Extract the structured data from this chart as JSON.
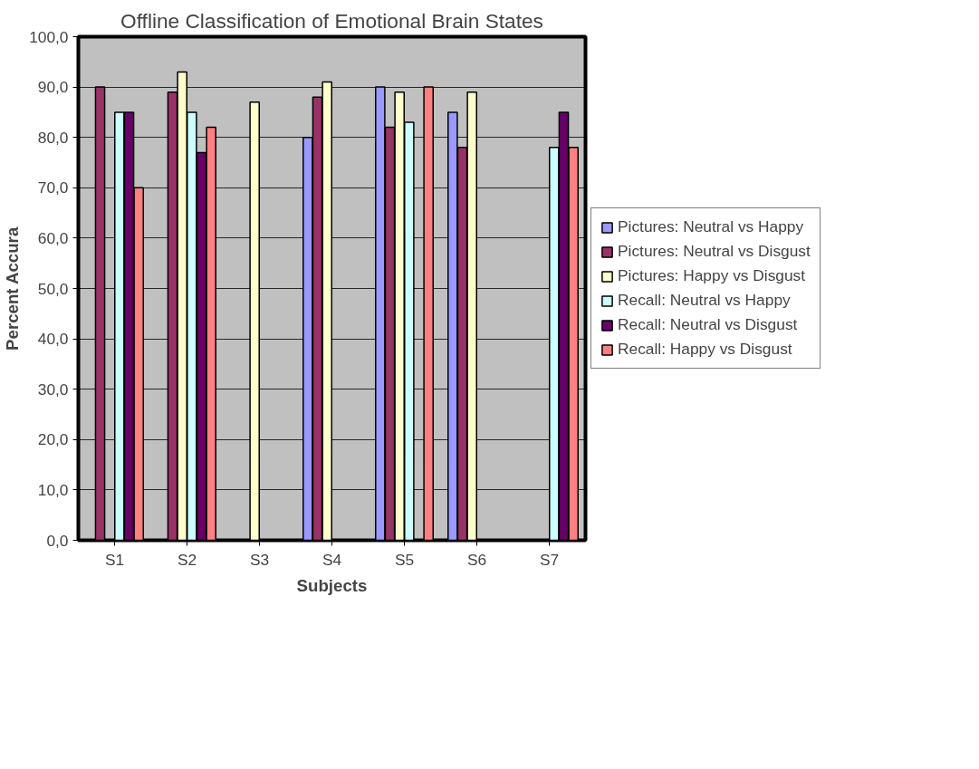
{
  "chart_data": {
    "type": "bar",
    "title": "Offline Classification of Emotional Brain States",
    "xlabel": "Subjects",
    "ylabel": "Percent Accura",
    "categories": [
      "S1",
      "S2",
      "S3",
      "S4",
      "S5",
      "S6",
      "S7"
    ],
    "series": [
      {
        "name": "Pictures: Neutral vs Happy",
        "color": "#9999ff",
        "values": [
          null,
          null,
          null,
          80,
          90,
          85,
          null
        ]
      },
      {
        "name": "Pictures: Neutral vs Disgust",
        "color": "#993366",
        "values": [
          90,
          89,
          null,
          88,
          82,
          78,
          null
        ]
      },
      {
        "name": "Pictures: Happy vs Disgust",
        "color": "#ffffcc",
        "values": [
          null,
          93,
          87,
          91,
          89,
          89,
          null
        ]
      },
      {
        "name": "Recall: Neutral vs Happy",
        "color": "#ccffff",
        "values": [
          85,
          85,
          null,
          null,
          83,
          null,
          78
        ]
      },
      {
        "name": "Recall: Neutral vs Disgust",
        "color": "#660066",
        "values": [
          85,
          77,
          null,
          null,
          null,
          null,
          85
        ]
      },
      {
        "name": "Recall: Happy vs Disgust",
        "color": "#ff8080",
        "values": [
          70,
          82,
          null,
          null,
          90,
          null,
          78
        ]
      }
    ],
    "ylim": [
      0,
      100
    ],
    "yticks": [
      {
        "value": 0,
        "label": "0,0"
      },
      {
        "value": 10,
        "label": "10,0"
      },
      {
        "value": 20,
        "label": "20,0"
      },
      {
        "value": 30,
        "label": "30,0"
      },
      {
        "value": 40,
        "label": "40,0"
      },
      {
        "value": 50,
        "label": "50,0"
      },
      {
        "value": 60,
        "label": "60,0"
      },
      {
        "value": 70,
        "label": "70,0"
      },
      {
        "value": 80,
        "label": "80,0"
      },
      {
        "value": 90,
        "label": "90,0"
      },
      {
        "value": 100,
        "label": "100,0"
      }
    ],
    "grid": "y",
    "legend": "right"
  }
}
